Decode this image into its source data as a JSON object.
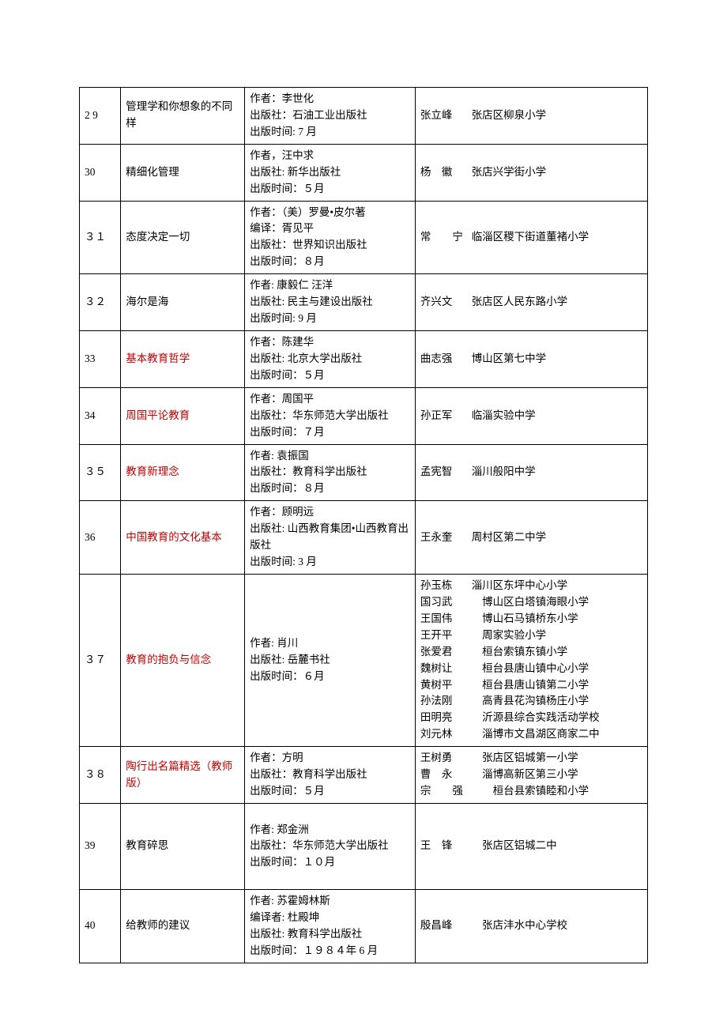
{
  "rows": [
    {
      "num": "2 9",
      "title": "管理学和你想象的不同样",
      "title_red": false,
      "info": [
        "作者：李世化",
        "出版社：石油工业出版社",
        "出版时间: 7 月"
      ],
      "people": [
        [
          "张立峰",
          "张店区柳泉小学"
        ]
      ],
      "tall": false
    },
    {
      "num": "30",
      "title": "精细化管理",
      "title_red": false,
      "info": [
        "作者，汪中求",
        "出版社: 新华出版社",
        "出版时间：５月"
      ],
      "people": [
        [
          "杨　徽",
          "张店兴学街小学"
        ]
      ],
      "tall": false
    },
    {
      "num": "３１",
      "title": "态度决定一切",
      "title_red": false,
      "info": [
        "作者：（美）罗曼•皮尔著",
        "编译：胥见平",
        "出版社：世界知识出版社",
        "出版时间：８月"
      ],
      "people": [
        [
          "常　　宁",
          "临淄区稷下街道董褚小学"
        ]
      ],
      "tall": false
    },
    {
      "num": "３２",
      "title": "海尔是海",
      "title_red": false,
      "info": [
        "作者: 康毅仁 汪洋",
        "出版社: 民主与建设出版社",
        "出版时间: 9 月"
      ],
      "people": [
        [
          "齐兴文",
          "张店区人民东路小学"
        ]
      ],
      "tall": false
    },
    {
      "num": "33",
      "title": "基本教育哲学",
      "title_red": true,
      "info": [
        "作者：陈建华",
        "出版社: 北京大学出版社",
        "出版时间：５月"
      ],
      "people": [
        [
          "曲志强",
          "博山区第七中学"
        ]
      ],
      "tall": false
    },
    {
      "num": "34",
      "title": "周国平论教育",
      "title_red": true,
      "info": [
        "作者：周国平",
        "出版社：华东师范大学出版社",
        "出版时间：７月"
      ],
      "people": [
        [
          "孙正军",
          "临淄实验中学"
        ]
      ],
      "tall": false
    },
    {
      "num": "３５",
      "title": "教育新理念",
      "title_red": true,
      "info": [
        "作者: 袁振国",
        "出版社：教育科学出版社",
        "出版时间：８月"
      ],
      "people": [
        [
          "孟宪智",
          "淄川般阳中学"
        ]
      ],
      "tall": false
    },
    {
      "num": "36",
      "title": "中国教育的文化基本",
      "title_red": true,
      "info": [
        "作者：顾明远",
        "出版社: 山西教育集团•山西教育出版社",
        "出版时间: 3 月"
      ],
      "people": [
        [
          "王永奎",
          "周村区第二中学"
        ]
      ],
      "tall": false
    },
    {
      "num": "３７",
      "title": "教育的抱负与信念",
      "title_red": true,
      "info": [
        "作者: 肖川",
        "出版社: 岳麓书社",
        "出版时间：６月"
      ],
      "people": [
        [
          "孙玉栋",
          "淄川区东坪中心小学"
        ],
        [
          "国习武",
          "　博山区白塔镇海眼小学"
        ],
        [
          "王国伟",
          "　博山石马镇桥东小学"
        ],
        [
          "王开平",
          "　周家实验小学"
        ],
        [
          "张爱君",
          "　桓台索镇东镇小学"
        ],
        [
          "魏树让",
          "　桓台县唐山镇中心小学"
        ],
        [
          "黄树平",
          "　桓台县唐山镇第二小学"
        ],
        [
          "孙法刚",
          "　高青县花沟镇杨庄小学"
        ],
        [
          "田明亮",
          "　沂源县综合实践活动学校"
        ],
        [
          "刘元林",
          "　淄博市文昌湖区商家二中"
        ]
      ],
      "tall": false
    },
    {
      "num": "３８",
      "title": "陶行出名篇精选（教师版）",
      "title_red": true,
      "info": [
        "作者：方明",
        "出版社：教育科学出版社",
        "出版时间：５月"
      ],
      "people": [
        [
          "王树勇",
          "　张店区铝城第一小学"
        ],
        [
          "曹　永",
          "　淄博高新区第三小学"
        ],
        [
          "宗　　强",
          "　　桓台县索镇睦和小学"
        ]
      ],
      "tall": false
    },
    {
      "num": "39",
      "title": "教育碎思",
      "title_red": false,
      "info": [
        "作者: 郑金洲",
        "出版社：华东师范大学出版社",
        "出版时间：１０月"
      ],
      "people": [
        [
          "王　锋",
          "　张店区铝城二中"
        ]
      ],
      "tall": true
    },
    {
      "num": "40",
      "title": "给教师的建议",
      "title_red": false,
      "info": [
        "作者: 苏霍姆林斯",
        "编译者: 杜殿坤",
        "出版社: 教育科学出版社",
        "出版时间：１９８４年 6 月"
      ],
      "people": [
        [
          "殷昌峰",
          "　张店沣水中心学校"
        ]
      ],
      "tall": false
    }
  ]
}
